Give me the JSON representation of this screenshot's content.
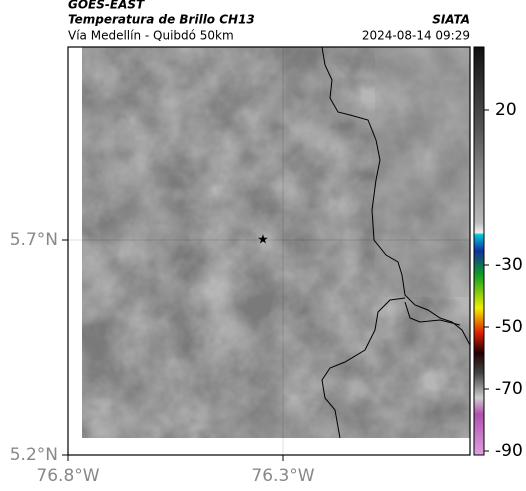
{
  "header": {
    "title": "GOES-EAST",
    "subtitle": "Temperatura de Brillo CH13",
    "source": "SIATA",
    "region": "Vía Medellín - Quibdó 50km",
    "datetime": "2024-08-14 09:29"
  },
  "map": {
    "lat_ticks": [
      {
        "value": 5.7,
        "label": "5.7°N"
      },
      {
        "value": 5.2,
        "label": "5.2°N"
      }
    ],
    "lon_ticks": [
      {
        "value": -76.8,
        "label": "76.8°W"
      },
      {
        "value": -76.3,
        "label": "76.3°W"
      }
    ]
  },
  "colorbar": {
    "ticks": [
      20,
      -30,
      -50,
      -70,
      -90
    ]
  }
}
